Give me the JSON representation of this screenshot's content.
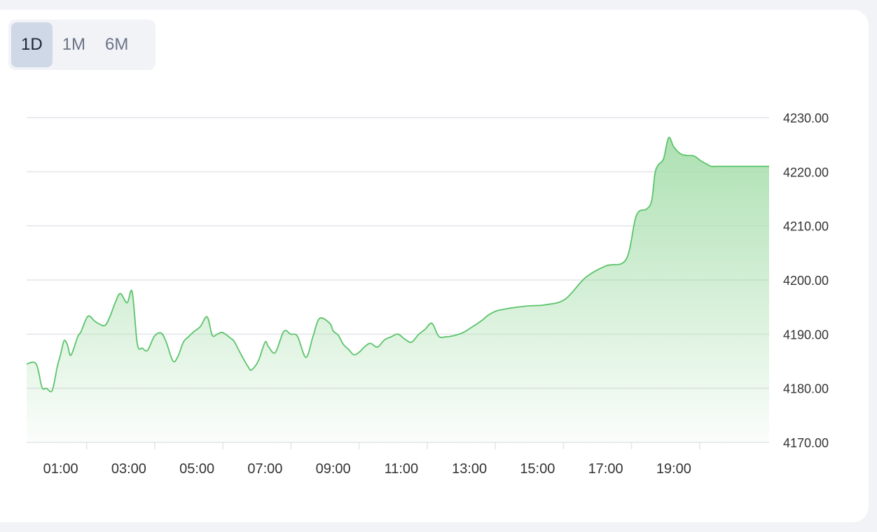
{
  "range_tabs": [
    {
      "label": "1D",
      "active": true
    },
    {
      "label": "1M",
      "active": false
    },
    {
      "label": "6M",
      "active": false
    }
  ],
  "colors": {
    "line": "#5cc46b",
    "fill_top": "#a9dfae",
    "grid": "#e2e4e8",
    "axis_text": "#333333",
    "active_tab": "#cfd8e6"
  },
  "chart_data": {
    "type": "area",
    "title": "",
    "xlabel": "",
    "ylabel": "",
    "xlim": [
      0,
      21.8
    ],
    "ylim": [
      4170,
      4230
    ],
    "y_ticks": [
      4170,
      4180,
      4190,
      4200,
      4210,
      4220,
      4230
    ],
    "y_tick_labels": [
      "4170.00",
      "4180.00",
      "4190.00",
      "4200.00",
      "4210.00",
      "4220.00",
      "4230.00"
    ],
    "x_ticks": [
      1,
      3,
      5,
      7,
      9,
      11,
      13,
      15,
      17,
      19
    ],
    "x_tick_labels": [
      "01:00",
      "03:00",
      "05:00",
      "07:00",
      "09:00",
      "11:00",
      "13:00",
      "15:00",
      "17:00",
      "19:00"
    ],
    "grid": true,
    "legend": "none",
    "series": [
      {
        "x": [
          0,
          0.28,
          0.45,
          0.58,
          0.75,
          0.9,
          1.0,
          1.1,
          1.2,
          1.3,
          1.5,
          1.6,
          1.8,
          2.0,
          2.1,
          2.3,
          2.45,
          2.6,
          2.75,
          2.95,
          3.1,
          3.25,
          3.4,
          3.55,
          3.75,
          3.95,
          4.1,
          4.3,
          4.45,
          4.6,
          4.75,
          4.9,
          5.1,
          5.3,
          5.45,
          5.6,
          5.75,
          6.0,
          6.1,
          6.3,
          6.5,
          6.6,
          6.8,
          7.0,
          7.1,
          7.3,
          7.55,
          7.75,
          7.95,
          8.2,
          8.4,
          8.6,
          8.9,
          9.0,
          9.15,
          9.3,
          9.45,
          9.6,
          9.75,
          9.95,
          10.1,
          10.3,
          10.5,
          10.7,
          10.9,
          11.1,
          11.3,
          11.5,
          11.7,
          11.9,
          12.1,
          12.3,
          12.45,
          12.65,
          12.85,
          13.0,
          13.2,
          13.4,
          13.55,
          13.8,
          14.2,
          14.7,
          15.2,
          15.8,
          16.4,
          17.0,
          17.6,
          17.9,
          18.2,
          18.35,
          18.45,
          18.55,
          18.7,
          18.85,
          19.0,
          19.2,
          19.4,
          19.6,
          19.8,
          20.0,
          20.1,
          20.3,
          20.5,
          20.7,
          20.9,
          21.1,
          21.3,
          21.5,
          21.8
        ],
        "y": [
          4184.5,
          4184.5,
          4180.2,
          4180,
          4179.6,
          4184,
          4186.3,
          4188.8,
          4188,
          4186.1,
          4189.5,
          4190.5,
          4193.3,
          4192.4,
          4192,
          4191.6,
          4193.3,
          4195.8,
          4197.5,
          4195.8,
          4197.8,
          4188.2,
          4187.4,
          4187,
          4189.6,
          4190.2,
          4188.5,
          4185,
          4186,
          4188.5,
          4189.5,
          4190.4,
          4191.4,
          4193.2,
          4189.8,
          4190,
          4190.3,
          4189.2,
          4188.6,
          4186.2,
          4184,
          4183.4,
          4185,
          4188.5,
          4187.7,
          4186.6,
          4190.5,
          4190,
          4189.6,
          4185.7,
          4189.4,
          4192.9,
          4192,
          4190.6,
          4189.8,
          4188.1,
          4187.2,
          4186.2,
          4186.6,
          4187.8,
          4188.3,
          4187.6,
          4188.9,
          4189.5,
          4190,
          4189.1,
          4188.5,
          4189.9,
          4190.9,
          4192,
          4189.6,
          4189.5,
          4189.6,
          4189.9,
          4190.4,
          4191,
          4191.8,
          4192.7,
          4193.5,
          4194.3,
          4194.8,
          4195.2,
          4195.4,
          4196.4,
          4200.4,
          4202.6,
          4203.8,
          4211.9,
          4213.1,
          4214.6,
          4219.7,
          4221.3,
          4222.4,
          4226.3,
          4224.6,
          4223.3,
          4223,
          4222.9,
          4222,
          4221.3,
          4221,
          4221,
          4221,
          4221,
          4221,
          4221,
          4221,
          4221,
          4221
        ]
      }
    ]
  }
}
